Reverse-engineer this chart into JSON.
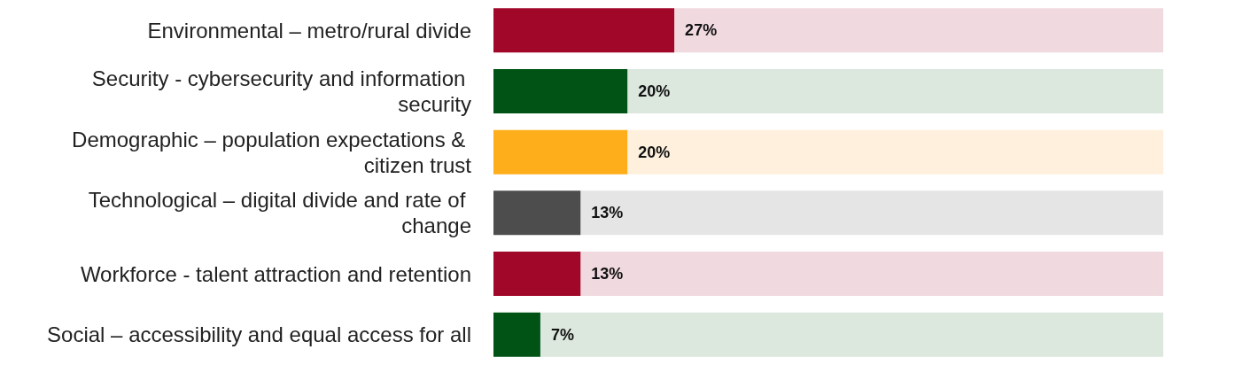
{
  "chart_data": {
    "type": "bar",
    "orientation": "horizontal",
    "stacked": true,
    "categories": [
      "Environmental – metro/rural divide",
      "Security - cybersecurity and information security",
      "Demographic – population expectations & citizen trust",
      "Technological – digital divide and rate of change",
      "Workforce - talent attraction and retention",
      "Social – accessibility and equal access for all"
    ],
    "tick_labels": "y",
    "series": [
      {
        "values": [
          27,
          20,
          20,
          13,
          13,
          7
        ],
        "colors": [
          "#a00728",
          "#005315",
          "#fdae1a",
          "#4d4d4d",
          "#a00728",
          "#005315"
        ],
        "value_labels": [
          "27%",
          "20%",
          "20%",
          "13%",
          "13%",
          "7%"
        ]
      },
      {
        "values": [
          73,
          80,
          80,
          87,
          87,
          93
        ],
        "colors": [
          "#f0dadf",
          "#dce7de",
          "#fef0dc",
          "#e5e5e5",
          "#f0dadf",
          "#dce7de"
        ]
      }
    ]
  }
}
